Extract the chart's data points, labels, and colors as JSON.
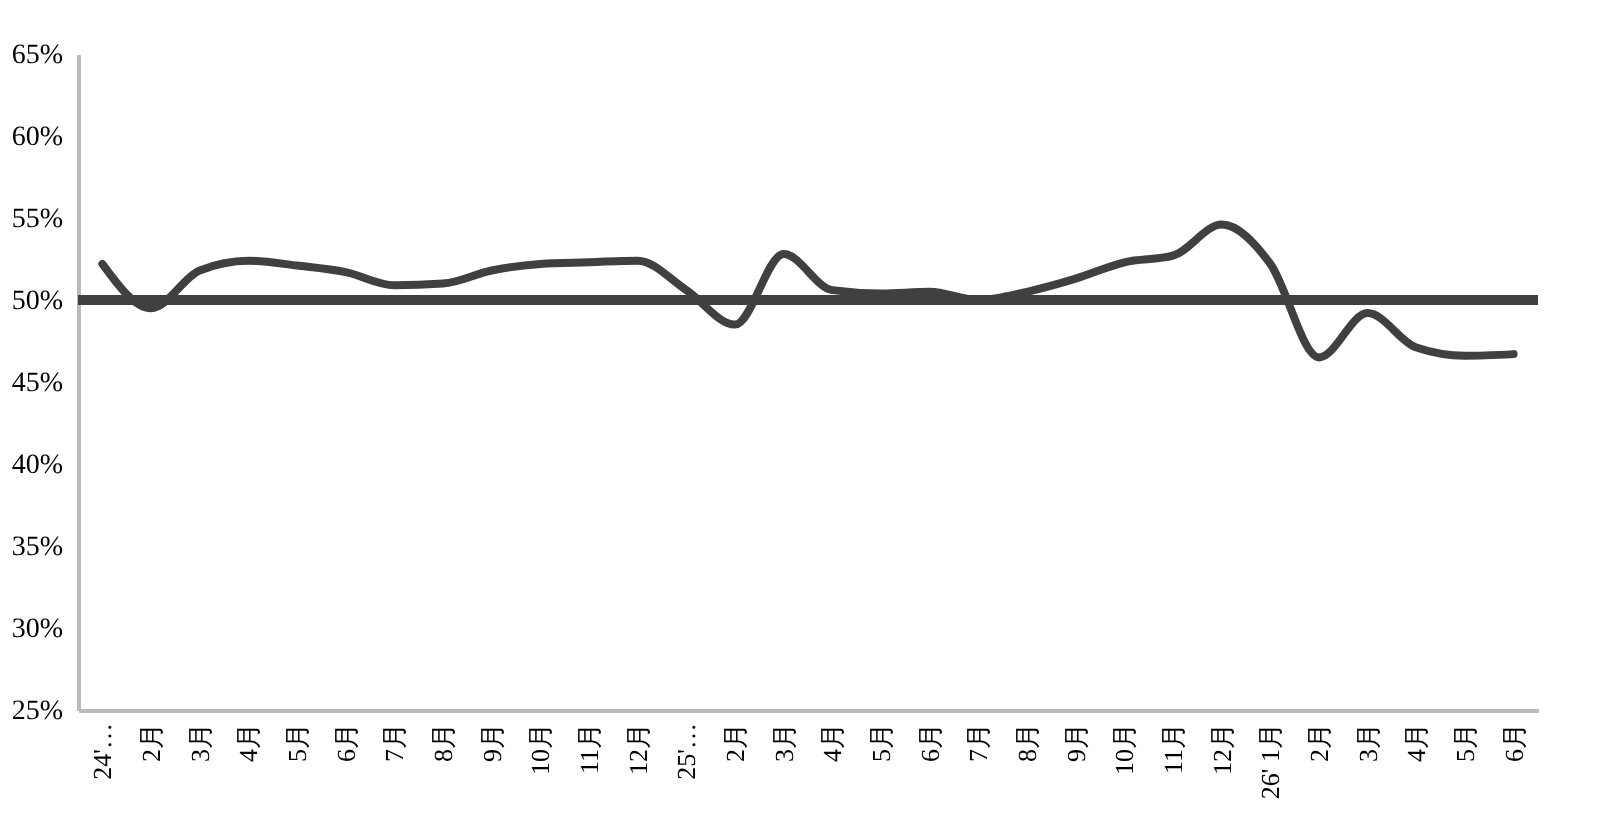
{
  "chart_data": {
    "type": "line",
    "categories": [
      "24'…",
      "2月",
      "3月",
      "4月",
      "5月",
      "6月",
      "7月",
      "8月",
      "9月",
      "10月",
      "11月",
      "12月",
      "25'…",
      "2月",
      "3月",
      "4月",
      "5月",
      "6月",
      "7月",
      "8月",
      "9月",
      "10月",
      "11月",
      "12月",
      "26' 1月",
      "2月",
      "3月",
      "4月",
      "5月",
      "6月"
    ],
    "series": [
      {
        "color": "#404040",
        "values": [
          52.2,
          49.5,
          51.8,
          52.4,
          52.1,
          51.7,
          50.9,
          51.0,
          51.8,
          52.2,
          52.3,
          52.4,
          50.6,
          48.5,
          52.8,
          50.6,
          50.4,
          50.5,
          50.0,
          50.5,
          51.3,
          52.3,
          52.7,
          54.6,
          52.2,
          46.5,
          49.2,
          47.1,
          46.6,
          46.7
        ]
      }
    ],
    "ref_lines": [
      {
        "axis": "y",
        "value": 50,
        "color": "#404040"
      }
    ],
    "ylim": [
      25,
      65
    ],
    "yticks": [
      {
        "value": 25,
        "label": "25%"
      },
      {
        "value": 30,
        "label": "30%"
      },
      {
        "value": 35,
        "label": "35%"
      },
      {
        "value": 40,
        "label": "40%"
      },
      {
        "value": 45,
        "label": "45%"
      },
      {
        "value": 50,
        "label": "50%"
      },
      {
        "value": 55,
        "label": "55%"
      },
      {
        "value": 60,
        "label": "60%"
      },
      {
        "value": 65,
        "label": "65%"
      }
    ],
    "grid": false,
    "marker": "none",
    "line_style": "solid"
  }
}
